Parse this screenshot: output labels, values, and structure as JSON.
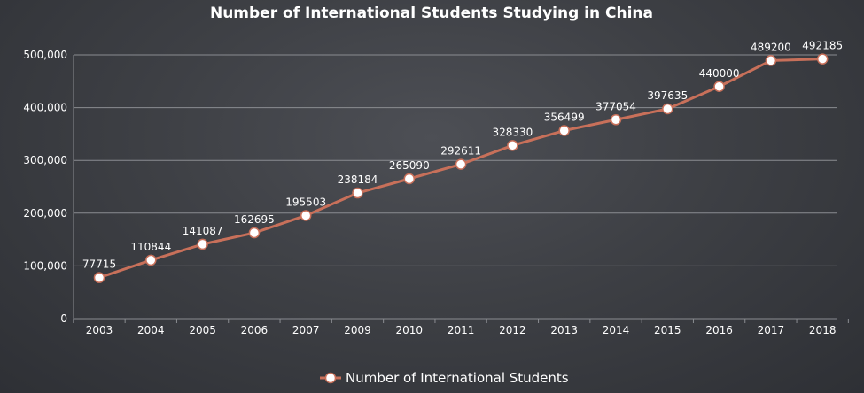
{
  "chart_data": {
    "type": "line",
    "title": "Number of International Students Studying in China",
    "xlabel": "",
    "ylabel": "",
    "categories": [
      "2003",
      "2004",
      "2005",
      "2006",
      "2007",
      "2009",
      "2010",
      "2011",
      "2012",
      "2013",
      "2014",
      "2015",
      "2016",
      "2017",
      "2018"
    ],
    "series": [
      {
        "name": "Number of International Students",
        "values": [
          77715,
          110844,
          141087,
          162695,
          195503,
          238184,
          265090,
          292611,
          328330,
          356499,
          377054,
          397635,
          440000,
          489200,
          492185
        ],
        "color": "#c8705a"
      }
    ],
    "ylim": [
      0,
      500000
    ],
    "yticks": [
      0,
      100000,
      200000,
      300000,
      400000,
      500000
    ],
    "ytick_labels": [
      "0",
      "100,000",
      "200,000",
      "300,000",
      "400,000",
      "500,000"
    ],
    "grid": true,
    "legend_position": "bottom-center",
    "colors": {
      "line": "#c8705a",
      "marker_fill": "#ffffff",
      "grid": "#8a8c91",
      "text": "#ffffff"
    }
  }
}
